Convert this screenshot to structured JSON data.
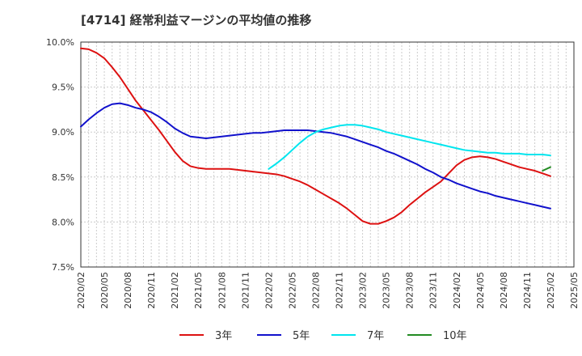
{
  "chart_data": {
    "type": "line",
    "title": "[4714]  経常利益マージンの平均値の推移",
    "xlabel": "",
    "ylabel": "",
    "x_ticks": [
      "2020/02",
      "2020/05",
      "2020/08",
      "2020/11",
      "2021/02",
      "2021/05",
      "2021/08",
      "2021/11",
      "2022/02",
      "2022/05",
      "2022/08",
      "2022/11",
      "2023/02",
      "2023/05",
      "2023/08",
      "2023/11",
      "2024/02",
      "2024/05",
      "2024/08",
      "2024/11",
      "2025/02",
      "2025/05"
    ],
    "y_ticks": [
      "10.0%",
      "9.5%",
      "9.0%",
      "8.5%",
      "8.0%",
      "7.5%"
    ],
    "ylim": [
      7.5,
      10.0
    ],
    "grid": true,
    "legend_position": "bottom",
    "series": [
      {
        "name": "3年",
        "color": "#dd1111",
        "x": [
          "2020/02",
          "2020/03",
          "2020/04",
          "2020/05",
          "2020/06",
          "2020/07",
          "2020/08",
          "2020/09",
          "2020/10",
          "2020/11",
          "2020/12",
          "2021/01",
          "2021/02",
          "2021/03",
          "2021/04",
          "2021/05",
          "2021/06",
          "2021/07",
          "2021/08",
          "2021/09",
          "2021/10",
          "2021/11",
          "2021/12",
          "2022/01",
          "2022/02",
          "2022/03",
          "2022/04",
          "2022/05",
          "2022/06",
          "2022/07",
          "2022/08",
          "2022/09",
          "2022/10",
          "2022/11",
          "2022/12",
          "2023/01",
          "2023/02",
          "2023/03",
          "2023/04",
          "2023/05",
          "2023/06",
          "2023/07",
          "2023/08",
          "2023/09",
          "2023/10",
          "2023/11",
          "2023/12",
          "2024/01",
          "2024/02",
          "2024/03",
          "2024/04",
          "2024/05",
          "2024/06",
          "2024/07",
          "2024/08",
          "2024/09",
          "2024/10",
          "2024/11",
          "2024/12",
          "2025/01",
          "2025/02"
        ],
        "values": [
          9.93,
          9.92,
          9.88,
          9.82,
          9.72,
          9.61,
          9.48,
          9.35,
          9.24,
          9.13,
          9.02,
          8.9,
          8.78,
          8.68,
          8.62,
          8.6,
          8.59,
          8.59,
          8.59,
          8.59,
          8.58,
          8.57,
          8.56,
          8.55,
          8.54,
          8.53,
          8.51,
          8.48,
          8.45,
          8.41,
          8.36,
          8.31,
          8.26,
          8.21,
          8.15,
          8.08,
          8.01,
          7.98,
          7.98,
          8.01,
          8.05,
          8.11,
          8.19,
          8.26,
          8.33,
          8.39,
          8.45,
          8.54,
          8.63,
          8.69,
          8.72,
          8.73,
          8.72,
          8.7,
          8.67,
          8.64,
          8.61,
          8.59,
          8.57,
          8.54,
          8.51
        ]
      },
      {
        "name": "5年",
        "color": "#1111cc",
        "x": [
          "2020/02",
          "2020/03",
          "2020/04",
          "2020/05",
          "2020/06",
          "2020/07",
          "2020/08",
          "2020/09",
          "2020/10",
          "2020/11",
          "2020/12",
          "2021/01",
          "2021/02",
          "2021/03",
          "2021/04",
          "2021/05",
          "2021/06",
          "2021/07",
          "2021/08",
          "2021/09",
          "2021/10",
          "2021/11",
          "2021/12",
          "2022/01",
          "2022/02",
          "2022/03",
          "2022/04",
          "2022/05",
          "2022/06",
          "2022/07",
          "2022/08",
          "2022/09",
          "2022/10",
          "2022/11",
          "2022/12",
          "2023/01",
          "2023/02",
          "2023/03",
          "2023/04",
          "2023/05",
          "2023/06",
          "2023/07",
          "2023/08",
          "2023/09",
          "2023/10",
          "2023/11",
          "2023/12",
          "2024/01",
          "2024/02",
          "2024/03",
          "2024/04",
          "2024/05",
          "2024/06",
          "2024/07",
          "2024/08",
          "2024/09",
          "2024/10",
          "2024/11",
          "2024/12",
          "2025/01",
          "2025/02"
        ],
        "values": [
          9.06,
          9.14,
          9.21,
          9.27,
          9.31,
          9.32,
          9.3,
          9.27,
          9.25,
          9.22,
          9.17,
          9.11,
          9.04,
          8.99,
          8.95,
          8.94,
          8.93,
          8.94,
          8.95,
          8.96,
          8.97,
          8.98,
          8.99,
          8.99,
          9.0,
          9.01,
          9.02,
          9.02,
          9.02,
          9.02,
          9.01,
          9.0,
          8.99,
          8.97,
          8.95,
          8.92,
          8.89,
          8.86,
          8.83,
          8.79,
          8.76,
          8.72,
          8.68,
          8.64,
          8.59,
          8.55,
          8.5,
          8.47,
          8.43,
          8.4,
          8.37,
          8.34,
          8.32,
          8.29,
          8.27,
          8.25,
          8.23,
          8.21,
          8.19,
          8.17,
          8.15
        ]
      },
      {
        "name": "7年",
        "color": "#00e5ee",
        "x": [
          "2022/02",
          "2022/03",
          "2022/04",
          "2022/05",
          "2022/06",
          "2022/07",
          "2022/08",
          "2022/09",
          "2022/10",
          "2022/11",
          "2022/12",
          "2023/01",
          "2023/02",
          "2023/03",
          "2023/04",
          "2023/05",
          "2023/06",
          "2023/07",
          "2023/08",
          "2023/09",
          "2023/10",
          "2023/11",
          "2023/12",
          "2024/01",
          "2024/02",
          "2024/03",
          "2024/04",
          "2024/05",
          "2024/06",
          "2024/07",
          "2024/08",
          "2024/09",
          "2024/10",
          "2024/11",
          "2024/12",
          "2025/01",
          "2025/02"
        ],
        "values": [
          8.59,
          8.65,
          8.72,
          8.8,
          8.88,
          8.95,
          9.0,
          9.03,
          9.05,
          9.07,
          9.08,
          9.08,
          9.07,
          9.05,
          9.03,
          9.0,
          8.98,
          8.96,
          8.94,
          8.92,
          8.9,
          8.88,
          8.86,
          8.84,
          8.82,
          8.8,
          8.79,
          8.78,
          8.77,
          8.77,
          8.76,
          8.76,
          8.76,
          8.75,
          8.75,
          8.75,
          8.74
        ]
      },
      {
        "name": "10年",
        "color": "#228b22",
        "x": [
          "2025/01",
          "2025/02"
        ],
        "values": [
          8.57,
          8.61
        ]
      }
    ]
  }
}
